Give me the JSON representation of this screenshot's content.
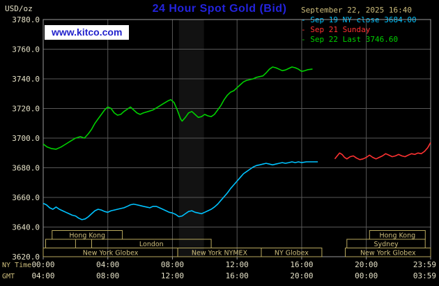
{
  "header": {
    "units": "USD/oz",
    "title": "24 Hour Spot Gold (Bid)",
    "datetime": "September 22, 2025 16:40",
    "watermark": "www.kitco.com"
  },
  "legend": {
    "items": [
      {
        "text": "- Sep 19 NY close 3684.00",
        "color": "#00c3ff"
      },
      {
        "text": "- Sep 21 Sunday",
        "color": "#ff3232"
      },
      {
        "text": "- Sep 22 Last 3746.60",
        "color": "#00d000"
      }
    ]
  },
  "colors": {
    "background": "#000000",
    "title_blue": "#2323dd",
    "axis_text": "#e6e2c8",
    "tan": "#cdbd7c",
    "grid": "#585858",
    "plot_border": "#9a9a9a",
    "band": "rgba(255,255,255,0.07)",
    "session_border": "#b9a95e",
    "watermark_bg": "#ffffff",
    "watermark_text": "#2222cc"
  },
  "chart_data": {
    "type": "line",
    "title": "24 Hour Spot Gold (Bid)",
    "ylabel": "USD/oz",
    "ylim": [
      3620,
      3780
    ],
    "ytick_step": 20,
    "hours_span": 23.983,
    "grid_hours": [
      4,
      8,
      12,
      16,
      20
    ],
    "x_ticks": {
      "ny_label": "NY Time",
      "gmt_label": "GMT",
      "hours": [
        0,
        4,
        8,
        12,
        16,
        20,
        23.983
      ],
      "ny": [
        "00:00",
        "04:00",
        "08:00",
        "12:00",
        "16:00",
        "20:00",
        "23:59"
      ],
      "gmt": [
        "04:00",
        "08:00",
        "12:00",
        "16:00",
        "20:00",
        "00:00",
        "03:59"
      ]
    },
    "highlight_band": {
      "start_h": 8.4,
      "end_h": 9.95
    },
    "series": [
      {
        "name": "Sep 22 Last 3746.60",
        "color": "#00d000",
        "points": [
          [
            0,
            3696
          ],
          [
            0.25,
            3694
          ],
          [
            0.5,
            3693
          ],
          [
            0.8,
            3692.5
          ],
          [
            1.1,
            3694
          ],
          [
            1.4,
            3696
          ],
          [
            1.7,
            3698
          ],
          [
            2,
            3700
          ],
          [
            2.3,
            3701
          ],
          [
            2.55,
            3700
          ],
          [
            2.8,
            3703
          ],
          [
            3,
            3706
          ],
          [
            3.2,
            3710
          ],
          [
            3.4,
            3713
          ],
          [
            3.6,
            3716
          ],
          [
            3.8,
            3719
          ],
          [
            4,
            3721
          ],
          [
            4.2,
            3720
          ],
          [
            4.4,
            3717
          ],
          [
            4.6,
            3715.5
          ],
          [
            4.8,
            3716
          ],
          [
            5,
            3718
          ],
          [
            5.2,
            3719.5
          ],
          [
            5.4,
            3721
          ],
          [
            5.6,
            3719
          ],
          [
            5.8,
            3717
          ],
          [
            6,
            3716
          ],
          [
            6.2,
            3717
          ],
          [
            6.5,
            3718
          ],
          [
            6.8,
            3719
          ],
          [
            7.1,
            3721
          ],
          [
            7.4,
            3723
          ],
          [
            7.7,
            3725
          ],
          [
            7.9,
            3726
          ],
          [
            8.1,
            3724
          ],
          [
            8.3,
            3719
          ],
          [
            8.5,
            3713
          ],
          [
            8.6,
            3711.5
          ],
          [
            8.8,
            3714
          ],
          [
            9,
            3717
          ],
          [
            9.2,
            3718
          ],
          [
            9.4,
            3716
          ],
          [
            9.6,
            3714
          ],
          [
            9.8,
            3714.5
          ],
          [
            10,
            3716
          ],
          [
            10.2,
            3715
          ],
          [
            10.4,
            3714.5
          ],
          [
            10.6,
            3716
          ],
          [
            10.8,
            3719
          ],
          [
            11,
            3722
          ],
          [
            11.2,
            3726
          ],
          [
            11.4,
            3729
          ],
          [
            11.6,
            3731
          ],
          [
            11.8,
            3732
          ],
          [
            12,
            3734
          ],
          [
            12.2,
            3736
          ],
          [
            12.4,
            3738
          ],
          [
            12.6,
            3739
          ],
          [
            12.8,
            3739.5
          ],
          [
            13,
            3740
          ],
          [
            13.2,
            3741
          ],
          [
            13.4,
            3741.5
          ],
          [
            13.6,
            3742
          ],
          [
            13.8,
            3744
          ],
          [
            14,
            3746.5
          ],
          [
            14.2,
            3748
          ],
          [
            14.4,
            3747.5
          ],
          [
            14.6,
            3746.5
          ],
          [
            14.8,
            3745.5
          ],
          [
            15,
            3746
          ],
          [
            15.2,
            3747
          ],
          [
            15.4,
            3748
          ],
          [
            15.6,
            3747.5
          ],
          [
            15.8,
            3746.5
          ],
          [
            16,
            3745
          ],
          [
            16.2,
            3745.5
          ],
          [
            16.4,
            3746.2
          ],
          [
            16.67,
            3746.6
          ]
        ]
      },
      {
        "name": "Sep 19 NY close 3684.00",
        "color": "#00c3ff",
        "points": [
          [
            0,
            3656
          ],
          [
            0.2,
            3655
          ],
          [
            0.4,
            3653
          ],
          [
            0.6,
            3652
          ],
          [
            0.8,
            3653.5
          ],
          [
            1,
            3652
          ],
          [
            1.2,
            3651
          ],
          [
            1.4,
            3650
          ],
          [
            1.6,
            3649
          ],
          [
            1.8,
            3648
          ],
          [
            2,
            3647.5
          ],
          [
            2.2,
            3646
          ],
          [
            2.4,
            3645
          ],
          [
            2.6,
            3645.5
          ],
          [
            2.8,
            3647
          ],
          [
            3,
            3649
          ],
          [
            3.2,
            3651
          ],
          [
            3.4,
            3652
          ],
          [
            3.6,
            3651.5
          ],
          [
            3.8,
            3650.5
          ],
          [
            4,
            3650
          ],
          [
            4.2,
            3651
          ],
          [
            4.4,
            3651.5
          ],
          [
            4.6,
            3652
          ],
          [
            4.8,
            3652.5
          ],
          [
            5,
            3653
          ],
          [
            5.2,
            3654
          ],
          [
            5.4,
            3655
          ],
          [
            5.6,
            3655.5
          ],
          [
            5.8,
            3655
          ],
          [
            6,
            3654.5
          ],
          [
            6.2,
            3654
          ],
          [
            6.4,
            3653.5
          ],
          [
            6.6,
            3653
          ],
          [
            6.8,
            3654
          ],
          [
            7,
            3654
          ],
          [
            7.2,
            3653
          ],
          [
            7.4,
            3652
          ],
          [
            7.6,
            3651
          ],
          [
            7.8,
            3650
          ],
          [
            8,
            3649.5
          ],
          [
            8.2,
            3648.5
          ],
          [
            8.4,
            3647
          ],
          [
            8.6,
            3647.5
          ],
          [
            8.8,
            3649
          ],
          [
            9,
            3650.5
          ],
          [
            9.2,
            3651
          ],
          [
            9.4,
            3650
          ],
          [
            9.6,
            3649.5
          ],
          [
            9.8,
            3649
          ],
          [
            10,
            3650
          ],
          [
            10.2,
            3651
          ],
          [
            10.4,
            3652
          ],
          [
            10.6,
            3653.5
          ],
          [
            10.8,
            3655.5
          ],
          [
            11,
            3658
          ],
          [
            11.2,
            3660.5
          ],
          [
            11.4,
            3663
          ],
          [
            11.6,
            3666
          ],
          [
            11.8,
            3668.5
          ],
          [
            12,
            3671
          ],
          [
            12.2,
            3673.5
          ],
          [
            12.4,
            3676
          ],
          [
            12.6,
            3677.5
          ],
          [
            12.8,
            3679
          ],
          [
            13,
            3680.5
          ],
          [
            13.2,
            3681.5
          ],
          [
            13.4,
            3682
          ],
          [
            13.6,
            3682.5
          ],
          [
            13.8,
            3683
          ],
          [
            14,
            3682.5
          ],
          [
            14.2,
            3682
          ],
          [
            14.4,
            3682.5
          ],
          [
            14.6,
            3683
          ],
          [
            14.8,
            3683.5
          ],
          [
            15,
            3683
          ],
          [
            15.2,
            3683.5
          ],
          [
            15.4,
            3684
          ],
          [
            15.6,
            3683.5
          ],
          [
            15.8,
            3684
          ],
          [
            16,
            3683.5
          ],
          [
            16.3,
            3684
          ],
          [
            16.6,
            3684
          ],
          [
            17,
            3684
          ]
        ]
      },
      {
        "name": "Sep 21 Sunday",
        "color": "#ff3232",
        "points": [
          [
            18.05,
            3686
          ],
          [
            18.2,
            3688
          ],
          [
            18.35,
            3690
          ],
          [
            18.5,
            3689
          ],
          [
            18.65,
            3687
          ],
          [
            18.8,
            3686
          ],
          [
            19,
            3687.5
          ],
          [
            19.2,
            3688
          ],
          [
            19.4,
            3686.5
          ],
          [
            19.6,
            3685.5
          ],
          [
            19.8,
            3686
          ],
          [
            20,
            3687
          ],
          [
            20.2,
            3688.5
          ],
          [
            20.4,
            3687
          ],
          [
            20.6,
            3686
          ],
          [
            20.8,
            3687
          ],
          [
            21,
            3688
          ],
          [
            21.2,
            3689.5
          ],
          [
            21.4,
            3688.5
          ],
          [
            21.6,
            3687.5
          ],
          [
            21.8,
            3688
          ],
          [
            22,
            3689
          ],
          [
            22.2,
            3688
          ],
          [
            22.4,
            3687.5
          ],
          [
            22.6,
            3688.5
          ],
          [
            22.8,
            3689.5
          ],
          [
            23,
            3689
          ],
          [
            23.2,
            3690
          ],
          [
            23.4,
            3689.5
          ],
          [
            23.6,
            3691
          ],
          [
            23.8,
            3693.5
          ],
          [
            23.98,
            3697
          ]
        ]
      }
    ],
    "sessions": [
      {
        "row": 0,
        "start_h": 0.55,
        "end_h": 4.9,
        "label": "Hong Kong"
      },
      {
        "row": 0,
        "start_h": 20.2,
        "end_h": 23.65,
        "label": "Hong Kong"
      },
      {
        "row": 1,
        "start_h": 0.15,
        "end_h": 2.0,
        "label": ""
      },
      {
        "row": 1,
        "start_h": 3.0,
        "end_h": 10.4,
        "label": "London"
      },
      {
        "row": 1,
        "start_h": 18.8,
        "end_h": 23.65,
        "label": "Sydney"
      },
      {
        "row": 2,
        "start_h": 0.0,
        "end_h": 8.33,
        "label": "New York Globex"
      },
      {
        "row": 2,
        "start_h": 8.33,
        "end_h": 13.5,
        "label": "New York NYMEX"
      },
      {
        "row": 2,
        "start_h": 13.5,
        "end_h": 17.25,
        "label": "NY Globex"
      },
      {
        "row": 2,
        "start_h": 18.7,
        "end_h": 23.983,
        "label": "New York Globex"
      }
    ]
  }
}
